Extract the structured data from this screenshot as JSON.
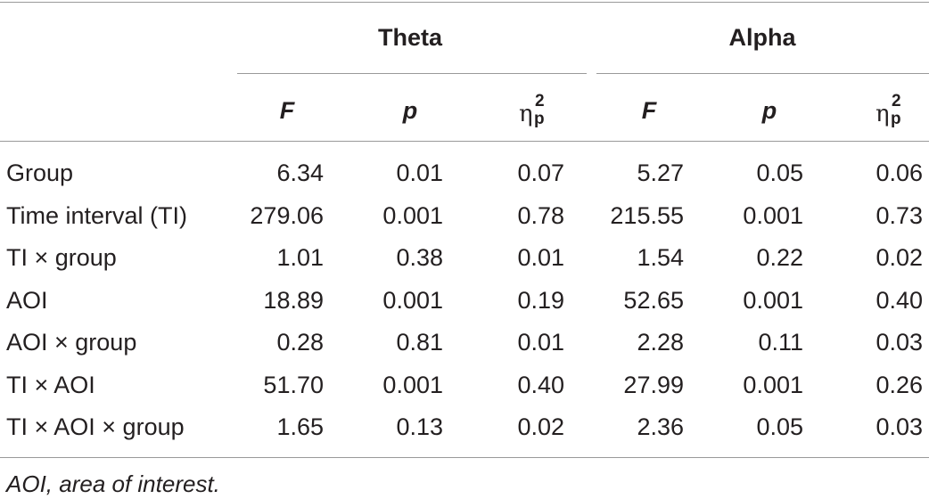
{
  "table": {
    "groups": [
      {
        "label": "Theta"
      },
      {
        "label": "Alpha"
      }
    ],
    "column_heads": {
      "f": "F",
      "p": "p",
      "eta_symbol": "η",
      "eta_sup": "2",
      "eta_sub": "p"
    },
    "rows": [
      {
        "label": "Group",
        "theta_f": "6.34",
        "theta_p": "0.01",
        "theta_eta": "0.07",
        "alpha_f": "5.27",
        "alpha_p": "0.05",
        "alpha_eta": "0.06"
      },
      {
        "label": "Time interval (TI)",
        "theta_f": "279.06",
        "theta_p": "0.001",
        "theta_eta": "0.78",
        "alpha_f": "215.55",
        "alpha_p": "0.001",
        "alpha_eta": "0.73"
      },
      {
        "label": "TI × group",
        "theta_f": "1.01",
        "theta_p": "0.38",
        "theta_eta": "0.01",
        "alpha_f": "1.54",
        "alpha_p": "0.22",
        "alpha_eta": "0.02"
      },
      {
        "label": "AOI",
        "theta_f": "18.89",
        "theta_p": "0.001",
        "theta_eta": "0.19",
        "alpha_f": "52.65",
        "alpha_p": "0.001",
        "alpha_eta": "0.40"
      },
      {
        "label": "AOI × group",
        "theta_f": "0.28",
        "theta_p": "0.81",
        "theta_eta": "0.01",
        "alpha_f": "2.28",
        "alpha_p": "0.11",
        "alpha_eta": "0.03"
      },
      {
        "label": "TI × AOI",
        "theta_f": "51.70",
        "theta_p": "0.001",
        "theta_eta": "0.40",
        "alpha_f": "27.99",
        "alpha_p": "0.001",
        "alpha_eta": "0.26"
      },
      {
        "label": "TI × AOI × group",
        "theta_f": "1.65",
        "theta_p": "0.13",
        "theta_eta": "0.02",
        "alpha_f": "2.36",
        "alpha_p": "0.05",
        "alpha_eta": "0.03"
      }
    ],
    "footnote": "AOI, area of interest."
  }
}
